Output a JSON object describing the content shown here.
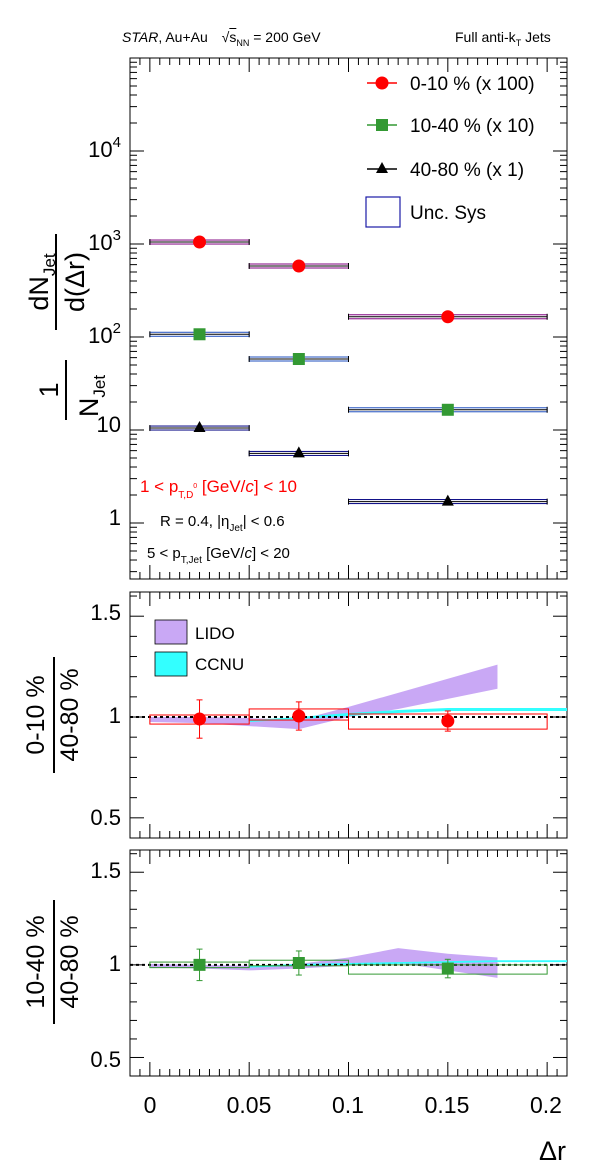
{
  "header": {
    "experiment": "STAR",
    "system": ", Au+Au",
    "energy_symbol": "s",
    "energy_sub": "NN",
    "energy_value": " = 200 GeV",
    "jets": "Full anti-k",
    "jets_sub": "T",
    "jets_suffix": " Jets"
  },
  "colors": {
    "c010": "#ff0000",
    "c1040": "#339933",
    "c4080": "#000000",
    "sys010": "#800080",
    "sys1040": "#1f4fbf",
    "sys4080": "#000080",
    "unc_box": "#1a1aa6",
    "lido": "#c9a8f5",
    "ccnu": "#33ffff",
    "ratio010": "#ff0000",
    "ratio1040": "#339933"
  },
  "legend_top": [
    {
      "label": "0-10 % (x 100)",
      "marker": "circle",
      "color": "#ff0000"
    },
    {
      "label": "10-40 % (x 10)",
      "marker": "square",
      "color": "#339933"
    },
    {
      "label": "40-80 % (x 1)",
      "marker": "triangle",
      "color": "#000000"
    },
    {
      "label": "Unc. Sys",
      "marker": "box",
      "color": "#1a1aa6"
    }
  ],
  "annotations": {
    "d0_pt_cut": "1 < p_T,D0 [GeV/c] < 10",
    "jet_r_eta": "R = 0.4, |η_Jet| < 0.6",
    "jet_pt_cut": "5 < p_T,Jet [GeV/c] < 20"
  },
  "legend_mid": [
    {
      "label": "LIDO",
      "color": "#c9a8f5"
    },
    {
      "label": "CCNU",
      "color": "#33ffff"
    }
  ],
  "axis_labels": {
    "top_y": "1/N_Jet dN_Jet/d(Δr)",
    "mid_y": "0-10 % / 40-80 %",
    "bot_y": "10-40 % / 40-80 %",
    "x": "Δr"
  },
  "chart_data": [
    {
      "type": "scatter",
      "panel": "top",
      "title": "",
      "xlabel": "Δr",
      "ylabel": "1/N_Jet dN_Jet/d(Δr)",
      "xlim": [
        -0.01,
        0.21
      ],
      "ylim": [
        0.25,
        100000
      ],
      "log_y": true,
      "y_tick_labels": [
        "1",
        "10",
        "10^2",
        "10^3",
        "10^4"
      ],
      "bins": [
        [
          0,
          0.05
        ],
        [
          0.05,
          0.1
        ],
        [
          0.1,
          0.2
        ]
      ],
      "x": [
        0.025,
        0.075,
        0.15
      ],
      "series": [
        {
          "name": "0-10 % (x 100)",
          "marker": "circle",
          "y": [
            1050,
            580,
            165
          ]
        },
        {
          "name": "10-40 % (x 10)",
          "marker": "square",
          "y": [
            107,
            58,
            16.5
          ]
        },
        {
          "name": "40-80 % (x 1)",
          "marker": "triangle",
          "y": [
            10.5,
            5.6,
            1.7
          ]
        }
      ]
    },
    {
      "type": "scatter",
      "panel": "middle",
      "ylabel": "0-10 % / 40-80 %",
      "xlim": [
        -0.01,
        0.21
      ],
      "ylim": [
        0.4,
        1.62
      ],
      "y_tick_labels": [
        "0.5",
        "1",
        "1.5"
      ],
      "x": [
        0.025,
        0.075,
        0.15
      ],
      "y": [
        0.99,
        1.005,
        0.98
      ],
      "yerr": [
        0.095,
        0.07,
        0.05
      ],
      "sys_low": [
        0.965,
        0.985,
        0.94
      ],
      "sys_high": [
        1.01,
        1.04,
        1.015
      ],
      "reference_line": 1,
      "models": [
        {
          "name": "LIDO",
          "x": [
            0.0,
            0.025,
            0.05,
            0.075,
            0.1,
            0.125,
            0.15,
            0.175
          ],
          "upper": [
            1.0,
            1.0,
            0.995,
            0.985,
            1.05,
            1.12,
            1.19,
            1.26
          ],
          "lower": [
            0.975,
            0.97,
            0.955,
            0.94,
            1.0,
            1.04,
            1.09,
            1.14
          ]
        },
        {
          "name": "CCNU",
          "x": [
            0.05,
            0.075,
            0.1,
            0.125,
            0.15,
            0.175,
            0.21
          ],
          "upper": [
            0.985,
            1.0,
            1.02,
            1.035,
            1.045,
            1.045,
            1.045
          ],
          "lower": [
            0.975,
            0.99,
            1.005,
            1.02,
            1.03,
            1.03,
            1.03
          ]
        }
      ]
    },
    {
      "type": "scatter",
      "panel": "bottom",
      "xlabel": "Δr",
      "ylabel": "10-40 % / 40-80 %",
      "xlim": [
        -0.01,
        0.21
      ],
      "ylim": [
        0.4,
        1.62
      ],
      "y_tick_labels": [
        "0.5",
        "1",
        "1.5"
      ],
      "x_tick_labels": [
        "0",
        "0.05",
        "0.1",
        "0.15",
        "0.2"
      ],
      "x": [
        0.025,
        0.075,
        0.15
      ],
      "y": [
        1.0,
        1.01,
        0.98
      ],
      "yerr": [
        0.085,
        0.065,
        0.05
      ],
      "sys_low": [
        0.985,
        0.995,
        0.95
      ],
      "sys_high": [
        1.015,
        1.025,
        1.0
      ],
      "reference_line": 1,
      "models": [
        {
          "name": "LIDO",
          "x": [
            0.0,
            0.025,
            0.05,
            0.075,
            0.1,
            0.125,
            0.15,
            0.175
          ],
          "upper": [
            1.005,
            1.0,
            0.995,
            1.005,
            1.04,
            1.09,
            1.06,
            1.04
          ],
          "lower": [
            0.985,
            0.98,
            0.97,
            0.98,
            0.995,
            1.01,
            0.97,
            0.93
          ]
        },
        {
          "name": "CCNU",
          "x": [
            0.05,
            0.075,
            0.1,
            0.125,
            0.15,
            0.175,
            0.21
          ],
          "upper": [
            0.995,
            1.005,
            1.01,
            1.015,
            1.02,
            1.025,
            1.025
          ],
          "lower": [
            0.985,
            0.995,
            1.0,
            1.005,
            1.01,
            1.015,
            1.015
          ]
        }
      ]
    }
  ]
}
